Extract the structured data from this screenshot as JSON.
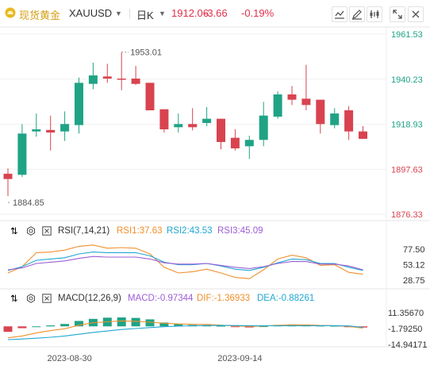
{
  "header": {
    "name": "现货黄金",
    "symbol": "XAUUSD",
    "period": "日K",
    "price": "1912.06",
    "change": "-3.66",
    "change_pct": "-0.19%"
  },
  "toolbar": [
    "chart-line-icon",
    "edit-icon",
    "bar-stats-icon",
    "fullscreen-icon",
    "close-icon"
  ],
  "colors": {
    "up": "#1fa385",
    "down": "#d8434f",
    "rsi1": "#f08f2c",
    "rsi2": "#21a7d1",
    "rsi3": "#9c5ed6",
    "macd": "#9c5ed6",
    "dif": "#f08f2c",
    "dea": "#21a7d1"
  },
  "rsi_bar": {
    "label": "RSI(7,14,21)",
    "rsi1": "RSI1:37.63",
    "rsi2": "RSI2:43.53",
    "rsi3": "RSI3:45.09"
  },
  "macd_bar": {
    "label": "MACD(12,26,9)",
    "macd": "MACD:-0.97344",
    "dif": "DIF:-1.36933",
    "dea": "DEA:-0.88261"
  },
  "chart_data": [
    {
      "type": "candlestick",
      "title": "XAUUSD 日K",
      "y_ticks": [
        "1961.53",
        "1940.23",
        "1918.93",
        "1897.63",
        "1876.33"
      ],
      "y_tick_values": [
        1961.53,
        1940.23,
        1918.93,
        1897.63,
        1876.33
      ],
      "ylim": [
        1876.33,
        1961.53
      ],
      "x_ticks": [
        "2023-08-30",
        "2023-09-14"
      ],
      "annotations": {
        "high": "1953.01",
        "low": "1884.85"
      },
      "candles": [
        {
          "o": 1895.5,
          "h": 1898.0,
          "l": 1884.9,
          "c": 1893.0
        },
        {
          "o": 1895.0,
          "h": 1919.0,
          "l": 1894.0,
          "c": 1914.5
        },
        {
          "o": 1915.5,
          "h": 1924.0,
          "l": 1913.0,
          "c": 1916.5
        },
        {
          "o": 1916.2,
          "h": 1923.0,
          "l": 1906.5,
          "c": 1915.0
        },
        {
          "o": 1915.5,
          "h": 1925.0,
          "l": 1911.0,
          "c": 1919.0
        },
        {
          "o": 1918.5,
          "h": 1941.0,
          "l": 1914.5,
          "c": 1938.5
        },
        {
          "o": 1938.0,
          "h": 1948.0,
          "l": 1935.5,
          "c": 1942.0
        },
        {
          "o": 1941.5,
          "h": 1947.5,
          "l": 1938.5,
          "c": 1940.5
        },
        {
          "o": 1940.5,
          "h": 1953.0,
          "l": 1935.0,
          "c": 1940.0
        },
        {
          "o": 1940.5,
          "h": 1946.5,
          "l": 1937.5,
          "c": 1938.0
        },
        {
          "o": 1938.5,
          "h": 1938.5,
          "l": 1925.5,
          "c": 1925.5
        },
        {
          "o": 1926.0,
          "h": 1926.0,
          "l": 1915.0,
          "c": 1916.5
        },
        {
          "o": 1917.5,
          "h": 1924.0,
          "l": 1915.0,
          "c": 1919.0
        },
        {
          "o": 1919.0,
          "h": 1926.5,
          "l": 1916.0,
          "c": 1917.5
        },
        {
          "o": 1919.5,
          "h": 1927.0,
          "l": 1918.0,
          "c": 1921.5
        },
        {
          "o": 1921.5,
          "h": 1921.5,
          "l": 1907.0,
          "c": 1910.5
        },
        {
          "o": 1912.5,
          "h": 1916.5,
          "l": 1906.5,
          "c": 1907.5
        },
        {
          "o": 1908.5,
          "h": 1913.5,
          "l": 1902.5,
          "c": 1911.5
        },
        {
          "o": 1911.5,
          "h": 1929.5,
          "l": 1908.5,
          "c": 1923.0
        },
        {
          "o": 1922.5,
          "h": 1934.5,
          "l": 1921.5,
          "c": 1933.0
        },
        {
          "o": 1933.0,
          "h": 1937.0,
          "l": 1928.0,
          "c": 1930.5
        },
        {
          "o": 1931.0,
          "h": 1947.0,
          "l": 1925.5,
          "c": 1928.0
        },
        {
          "o": 1930.5,
          "h": 1930.5,
          "l": 1914.5,
          "c": 1919.0
        },
        {
          "o": 1918.5,
          "h": 1926.5,
          "l": 1917.0,
          "c": 1924.0
        },
        {
          "o": 1925.5,
          "h": 1927.5,
          "l": 1911.5,
          "c": 1915.5
        },
        {
          "o": 1915.5,
          "h": 1918.0,
          "l": 1912.0,
          "c": 1912.0
        }
      ]
    },
    {
      "type": "line",
      "title": "RSI(7,14,21)",
      "y_ticks": [
        "77.50",
        "53.12",
        "28.75"
      ],
      "ylim": [
        20,
        95
      ],
      "series": [
        {
          "name": "RSI1",
          "values": [
            40,
            50,
            72,
            73,
            76,
            82,
            84,
            79,
            80,
            79,
            70,
            49,
            40,
            42,
            46,
            40,
            33,
            31,
            45,
            62,
            68,
            64,
            52,
            53,
            41,
            38
          ]
        },
        {
          "name": "RSI2",
          "values": [
            44,
            50,
            60,
            62,
            64,
            70,
            73,
            72,
            72,
            72,
            67,
            57,
            53,
            53,
            55,
            51,
            46,
            44,
            49,
            56,
            62,
            61,
            55,
            55,
            49,
            44
          ]
        },
        {
          "name": "RSI3",
          "values": [
            45,
            48,
            55,
            57,
            59,
            63,
            66,
            65,
            65,
            65,
            62,
            56,
            54,
            54,
            55,
            52,
            49,
            47,
            50,
            55,
            58,
            58,
            54,
            54,
            51,
            45
          ]
        }
      ]
    },
    {
      "type": "bar",
      "title": "MACD(12,26,9)",
      "y_ticks": [
        "11.35670",
        "-1.79250",
        "-14.94171"
      ],
      "ylim": [
        -14.94171,
        11.3567
      ],
      "series": [
        {
          "name": "MACD",
          "values": [
            -4.5,
            -1.5,
            0,
            0.8,
            2.0,
            4.5,
            6.2,
            7.2,
            7.4,
            7.0,
            5.8,
            3.2,
            1.8,
            1.2,
            1.0,
            0.5,
            -0.3,
            -0.9,
            0.1,
            1.2,
            1.6,
            1.4,
            0.6,
            0.5,
            -0.4,
            -0.97
          ]
        },
        {
          "name": "DIF",
          "values": [
            -9.5,
            -8.0,
            -5.5,
            -3.5,
            -2.0,
            1.0,
            3.0,
            3.8,
            4.5,
            4.2,
            3.5,
            2.6,
            2.0,
            1.7,
            1.6,
            1.0,
            0.4,
            0.0,
            0.3,
            0.9,
            1.2,
            1.2,
            0.8,
            0.6,
            0.0,
            -1.37
          ]
        },
        {
          "name": "DEA",
          "values": [
            -11.0,
            -10.5,
            -9.8,
            -9.0,
            -8.0,
            -6.5,
            -5.0,
            -3.8,
            -2.6,
            -1.8,
            -1.0,
            -0.3,
            0.2,
            0.5,
            0.7,
            0.8,
            0.7,
            0.6,
            0.5,
            0.5,
            0.6,
            0.6,
            0.6,
            0.6,
            0.4,
            -0.88
          ]
        }
      ]
    }
  ]
}
